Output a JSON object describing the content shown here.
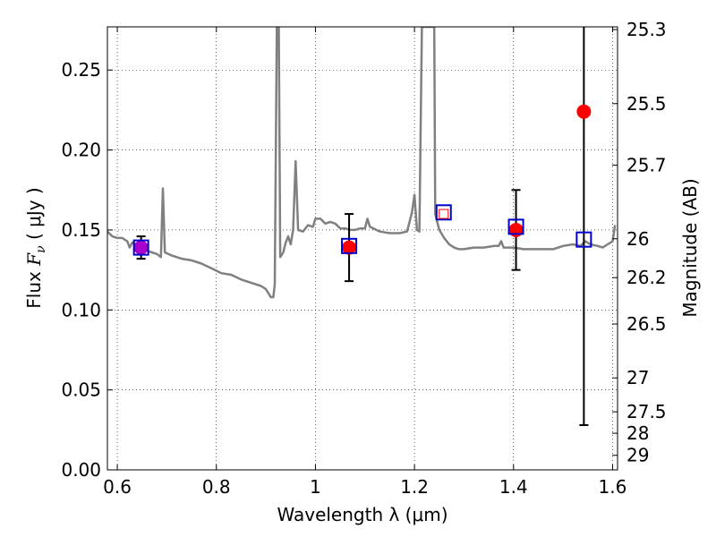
{
  "chart_data": {
    "type": "scatter",
    "xlabel": "Wavelength  λ (μm)",
    "ylabel_left": {
      "prefix": "Flux  ",
      "symbol": "F",
      "sub": "ν",
      "suffix": "  ( μJy )"
    },
    "ylabel_right": "Magnitude (AB)",
    "xlim": [
      0.58,
      1.61
    ],
    "ylim": [
      0,
      0.277
    ],
    "grid": true,
    "x_ticks": [
      {
        "value": 0.6,
        "label": "0.6"
      },
      {
        "value": 0.8,
        "label": "0.8"
      },
      {
        "value": 1.0,
        "label": "1"
      },
      {
        "value": 1.2,
        "label": "1.2"
      },
      {
        "value": 1.4,
        "label": "1.4"
      },
      {
        "value": 1.6,
        "label": "1.6"
      }
    ],
    "y_ticks": [
      {
        "value": 0.0,
        "label": "0.00"
      },
      {
        "value": 0.05,
        "label": "0.05"
      },
      {
        "value": 0.1,
        "label": "0.10"
      },
      {
        "value": 0.15,
        "label": "0.15"
      },
      {
        "value": 0.2,
        "label": "0.20"
      },
      {
        "value": 0.25,
        "label": "0.25"
      }
    ],
    "right_ticks": [
      {
        "flux": 0.2753,
        "label": "25.3"
      },
      {
        "flux": 0.229,
        "label": "25.5"
      },
      {
        "flux": 0.1905,
        "label": "25.7"
      },
      {
        "flux": 0.1445,
        "label": "26"
      },
      {
        "flux": 0.1202,
        "label": "26.2"
      },
      {
        "flux": 0.0912,
        "label": "26.5"
      },
      {
        "flux": 0.0575,
        "label": "27"
      },
      {
        "flux": 0.0363,
        "label": "27.5"
      },
      {
        "flux": 0.0229,
        "label": "28"
      },
      {
        "flux": 0.0091,
        "label": "29"
      }
    ],
    "series": [
      {
        "kind": "model_spectrum",
        "color": "#808080",
        "points": [
          [
            0.58,
            0.149
          ],
          [
            0.59,
            0.146
          ],
          [
            0.6,
            0.145
          ],
          [
            0.61,
            0.145
          ],
          [
            0.62,
            0.143
          ],
          [
            0.625,
            0.139
          ],
          [
            0.63,
            0.142
          ],
          [
            0.64,
            0.141
          ],
          [
            0.65,
            0.139
          ],
          [
            0.66,
            0.137
          ],
          [
            0.67,
            0.136
          ],
          [
            0.68,
            0.135
          ],
          [
            0.688,
            0.133
          ],
          [
            0.692,
            0.176
          ],
          [
            0.696,
            0.136
          ],
          [
            0.71,
            0.134
          ],
          [
            0.73,
            0.132
          ],
          [
            0.75,
            0.131
          ],
          [
            0.77,
            0.129
          ],
          [
            0.79,
            0.126
          ],
          [
            0.81,
            0.123
          ],
          [
            0.83,
            0.122
          ],
          [
            0.85,
            0.119
          ],
          [
            0.87,
            0.117
          ],
          [
            0.89,
            0.115
          ],
          [
            0.9,
            0.113
          ],
          [
            0.91,
            0.108
          ],
          [
            0.915,
            0.108
          ],
          [
            0.918,
            0.116
          ],
          [
            0.922,
            0.277
          ],
          [
            0.926,
            0.277
          ],
          [
            0.929,
            0.133
          ],
          [
            0.935,
            0.136
          ],
          [
            0.94,
            0.142
          ],
          [
            0.945,
            0.146
          ],
          [
            0.95,
            0.141
          ],
          [
            0.955,
            0.15
          ],
          [
            0.96,
            0.193
          ],
          [
            0.965,
            0.15
          ],
          [
            0.975,
            0.149
          ],
          [
            0.985,
            0.153
          ],
          [
            0.995,
            0.152
          ],
          [
            1.0,
            0.157
          ],
          [
            1.01,
            0.157
          ],
          [
            1.02,
            0.154
          ],
          [
            1.03,
            0.155
          ],
          [
            1.04,
            0.154
          ],
          [
            1.05,
            0.151
          ],
          [
            1.06,
            0.151
          ],
          [
            1.07,
            0.15
          ],
          [
            1.08,
            0.15
          ],
          [
            1.09,
            0.151
          ],
          [
            1.1,
            0.151
          ],
          [
            1.105,
            0.157
          ],
          [
            1.11,
            0.152
          ],
          [
            1.13,
            0.149
          ],
          [
            1.15,
            0.148
          ],
          [
            1.17,
            0.148
          ],
          [
            1.185,
            0.149
          ],
          [
            1.195,
            0.161
          ],
          [
            1.2,
            0.172
          ],
          [
            1.205,
            0.15
          ],
          [
            1.21,
            0.149
          ],
          [
            1.215,
            0.277
          ],
          [
            1.24,
            0.277
          ],
          [
            1.242,
            0.16
          ],
          [
            1.25,
            0.15
          ],
          [
            1.26,
            0.145
          ],
          [
            1.27,
            0.141
          ],
          [
            1.28,
            0.139
          ],
          [
            1.29,
            0.138
          ],
          [
            1.3,
            0.138
          ],
          [
            1.32,
            0.139
          ],
          [
            1.34,
            0.139
          ],
          [
            1.36,
            0.14
          ],
          [
            1.37,
            0.14
          ],
          [
            1.375,
            0.143
          ],
          [
            1.38,
            0.139
          ],
          [
            1.4,
            0.139
          ],
          [
            1.42,
            0.138
          ],
          [
            1.44,
            0.138
          ],
          [
            1.46,
            0.138
          ],
          [
            1.48,
            0.138
          ],
          [
            1.5,
            0.14
          ],
          [
            1.52,
            0.141
          ],
          [
            1.535,
            0.14
          ],
          [
            1.545,
            0.143
          ],
          [
            1.555,
            0.141
          ],
          [
            1.57,
            0.14
          ],
          [
            1.58,
            0.139
          ],
          [
            1.59,
            0.141
          ],
          [
            1.6,
            0.143
          ],
          [
            1.605,
            0.153
          ]
        ]
      },
      {
        "kind": "model_photometry",
        "color": "#0000cc",
        "marker": "open-square",
        "points": [
          [
            0.648,
            0.139
          ],
          [
            1.068,
            0.14
          ],
          [
            1.259,
            0.161
          ],
          [
            1.405,
            0.152
          ],
          [
            1.542,
            0.144
          ]
        ]
      },
      {
        "kind": "observed_photometry",
        "color": "#ff0000",
        "marker": "filled-circle",
        "errorbar_color": "#000000",
        "points": [
          {
            "x": 0.648,
            "y": 0.139,
            "yerr": 0.007
          },
          {
            "x": 1.068,
            "y": 0.139,
            "yerr": 0.021
          },
          {
            "x": 1.405,
            "y": 0.15,
            "yerr": 0.025
          },
          {
            "x": 1.542,
            "y": 0.224,
            "yerr": 0.196
          }
        ]
      },
      {
        "kind": "highlight_point",
        "color": "#aa00cc",
        "marker": "filled-circle",
        "points": [
          [
            0.648,
            0.139
          ]
        ]
      },
      {
        "kind": "small_open_square",
        "color": "#ff0000",
        "marker": "open-square",
        "points": [
          [
            1.259,
            0.16
          ]
        ]
      }
    ]
  }
}
